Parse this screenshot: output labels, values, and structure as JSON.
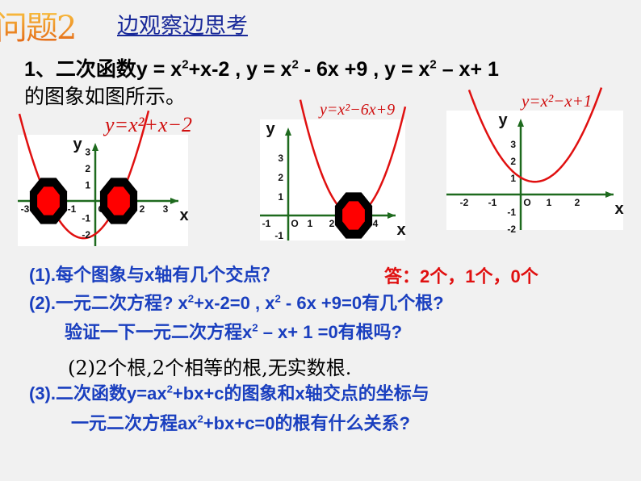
{
  "header": {
    "title": "问题2",
    "subtitle": "边观察边思考"
  },
  "intro": {
    "line1_prefix": "1、二次函数",
    "f1": "y = x",
    "f1_exp": "2",
    "f1_rest": "+x-2 , ",
    "f2": "y = x",
    "f2_exp": "2",
    "f2_rest": " - 6x +9 , ",
    "f3": "y = x",
    "f3_exp": "2",
    "f3_rest": " – x+ 1",
    "line2": "的图象如图所示。"
  },
  "graphs": [
    {
      "label": "y=x²+x−2",
      "coeffs": [
        1,
        1,
        -2
      ],
      "x_axis": "x",
      "y_axis": "y",
      "origin": "O",
      "x_ticks": [
        "-3",
        "-1",
        "2",
        "3"
      ],
      "y_ticks": [
        "3",
        "2",
        "1",
        "-1",
        "-2"
      ],
      "roots": [
        -2,
        1
      ],
      "curve_color": "#e01010",
      "axis_color": "#1e6a1e"
    },
    {
      "label": "y=x²−6x+9",
      "coeffs": [
        1,
        -6,
        9
      ],
      "x_axis": "x",
      "y_axis": "y",
      "origin": "O",
      "x_ticks": [
        "-1",
        "1",
        "2",
        "4"
      ],
      "y_ticks": [
        "3",
        "2",
        "1",
        "-1"
      ],
      "roots": [
        3
      ],
      "curve_color": "#e01010",
      "axis_color": "#1e6a1e"
    },
    {
      "label": "y=x²−x+1",
      "coeffs": [
        1,
        -1,
        1
      ],
      "x_axis": "x",
      "y_axis": "y",
      "origin": "O",
      "x_ticks": [
        "-2",
        "-1",
        "1",
        "2"
      ],
      "y_ticks": [
        "3",
        "2",
        "1",
        "-1",
        "-2"
      ],
      "roots": [],
      "curve_color": "#e01010",
      "axis_color": "#1e6a1e"
    }
  ],
  "questions": {
    "q1": "(1).每个图象与x轴有几个交点？",
    "answer": "答：2个，1个，0个",
    "q2_a": "(2).一元二次方程? x",
    "q2_a_exp": "2",
    "q2_b": "+x-2=0 , x",
    "q2_b_exp": "2",
    "q2_c": " - 6x +9=0有几个根?",
    "q2_line2_a": "验证一下一元二次方程x",
    "q2_line2_exp": "2",
    "q2_line2_b": " – x+ 1 =0有根吗?",
    "note": "(2)2个根,2个相等的根,无实数根.",
    "q3_a": "(3).二次函数y=ax",
    "q3_exp": "2",
    "q3_b": "+bx+c的图象和x轴交点的坐标与",
    "q3_line2_a": "一元二次方程ax",
    "q3_line2_exp": "2",
    "q3_line2_b": "+bx+c=0的根有什么关系?"
  }
}
